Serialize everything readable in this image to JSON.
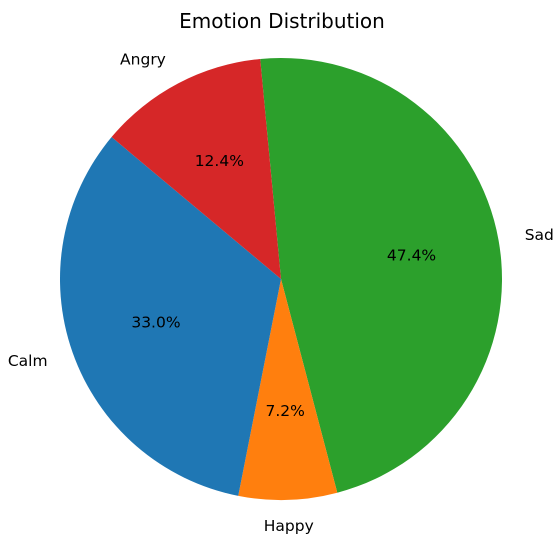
{
  "chart_data": {
    "type": "pie",
    "title": "Emotion Distribution",
    "slices": [
      {
        "label": "Sad",
        "value": 47.4,
        "pct_text": "47.4%",
        "color": "#2ca02c"
      },
      {
        "label": "Happy",
        "value": 7.2,
        "pct_text": "7.2%",
        "color": "#ff7f0e"
      },
      {
        "label": "Calm",
        "value": 33.0,
        "pct_text": "33.0%",
        "color": "#1f77b4"
      },
      {
        "label": "Angry",
        "value": 12.4,
        "pct_text": "12.4%",
        "color": "#d62728"
      }
    ],
    "direction": "clockwise",
    "legend": "none"
  }
}
